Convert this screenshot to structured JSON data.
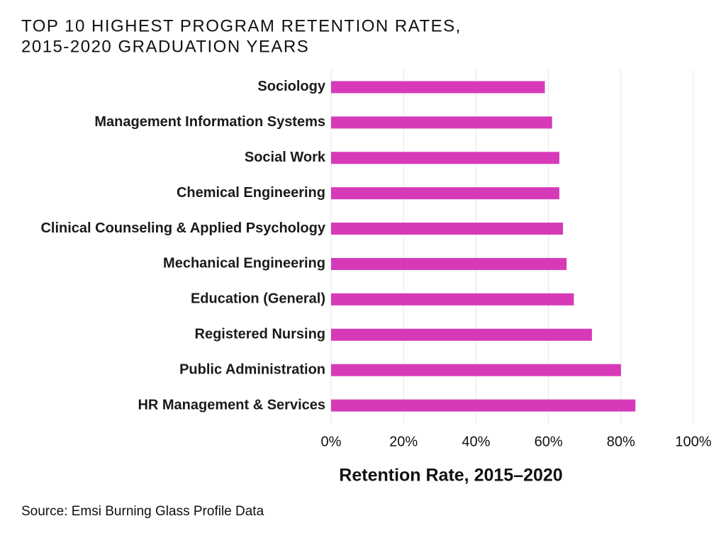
{
  "chart_data": {
    "type": "bar",
    "orientation": "horizontal",
    "title": [
      "TOP 10 HIGHEST PROGRAM RETENTION RATES,",
      "2015-2020 GRADUATION YEARS"
    ],
    "categories": [
      "Sociology",
      "Management Information Systems",
      "Social Work",
      "Chemical Engineering",
      "Clinical Counseling & Applied Psychology",
      "Mechanical Engineering",
      "Education (General)",
      "Registered Nursing",
      "Public Administration",
      "HR Management & Services"
    ],
    "values": [
      59,
      61,
      63,
      63,
      64,
      65,
      67,
      72,
      80,
      84
    ],
    "color": "#d63ab8",
    "xlabel": "Retention Rate, 2015–2020",
    "xlim": [
      0,
      100
    ],
    "xticks": [
      {
        "value": 0,
        "label": "0%"
      },
      {
        "value": 20,
        "label": "20%"
      },
      {
        "value": 40,
        "label": "40%"
      },
      {
        "value": 60,
        "label": "60%"
      },
      {
        "value": 80,
        "label": "80%"
      },
      {
        "value": 100,
        "label": "100%"
      }
    ],
    "grid": true,
    "source": "Source: Emsi Burning Glass Profile Data"
  }
}
